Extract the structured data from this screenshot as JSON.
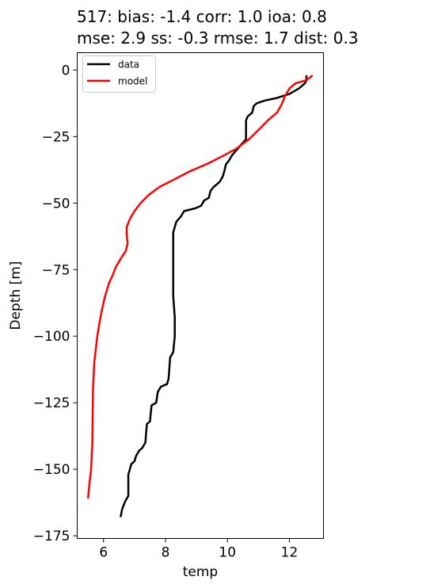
{
  "chart_data": {
    "type": "line",
    "title_lines": [
      "517: bias: -1.4  corr: 1.0  ioa: 0.8",
      "mse: 2.9  ss: -0.3  rmse: 1.7  dist: 0.3"
    ],
    "xlabel": "temp",
    "ylabel": "Depth [m]",
    "xlim": [
      5.15,
      13.1
    ],
    "ylim": [
      -176,
      6.5
    ],
    "xticks": [
      6,
      8,
      10,
      12
    ],
    "yticks": [
      0,
      -25,
      -50,
      -75,
      -100,
      -125,
      -150,
      -175
    ],
    "grid": false,
    "legend_position": "top-left",
    "series": [
      {
        "name": "data",
        "color": "#000000",
        "points": [
          [
            12.55,
            -2
          ],
          [
            12.55,
            -4
          ],
          [
            12.5,
            -5
          ],
          [
            12.3,
            -7
          ],
          [
            12.0,
            -9
          ],
          [
            11.6,
            -10.5
          ],
          [
            11.2,
            -11.5
          ],
          [
            10.95,
            -12.5
          ],
          [
            10.85,
            -13.5
          ],
          [
            10.8,
            -16
          ],
          [
            10.65,
            -17.5
          ],
          [
            10.6,
            -19
          ],
          [
            10.6,
            -26
          ],
          [
            10.45,
            -28
          ],
          [
            10.3,
            -30
          ],
          [
            10.15,
            -32
          ],
          [
            10.05,
            -34
          ],
          [
            9.95,
            -35.5
          ],
          [
            9.9,
            -38
          ],
          [
            9.85,
            -40
          ],
          [
            9.75,
            -42
          ],
          [
            9.55,
            -44
          ],
          [
            9.45,
            -45.5
          ],
          [
            9.4,
            -48
          ],
          [
            9.25,
            -49
          ],
          [
            9.15,
            -51
          ],
          [
            8.95,
            -52
          ],
          [
            8.6,
            -53
          ],
          [
            8.5,
            -55
          ],
          [
            8.35,
            -57
          ],
          [
            8.3,
            -59
          ],
          [
            8.25,
            -61
          ],
          [
            8.25,
            -66
          ],
          [
            8.25,
            -77
          ],
          [
            8.25,
            -85
          ],
          [
            8.3,
            -93
          ],
          [
            8.3,
            -100
          ],
          [
            8.25,
            -106
          ],
          [
            8.15,
            -108
          ],
          [
            8.1,
            -116
          ],
          [
            8.05,
            -118
          ],
          [
            7.85,
            -119
          ],
          [
            7.75,
            -121
          ],
          [
            7.7,
            -125
          ],
          [
            7.55,
            -126
          ],
          [
            7.5,
            -132
          ],
          [
            7.4,
            -133
          ],
          [
            7.35,
            -140
          ],
          [
            7.25,
            -142
          ],
          [
            7.15,
            -143
          ],
          [
            7.05,
            -145
          ],
          [
            7.0,
            -147
          ],
          [
            6.9,
            -148
          ],
          [
            6.85,
            -150
          ],
          [
            6.8,
            -152
          ],
          [
            6.8,
            -160
          ],
          [
            6.7,
            -162
          ],
          [
            6.6,
            -165
          ],
          [
            6.55,
            -168
          ]
        ]
      },
      {
        "name": "model",
        "color": "#ff0000",
        "points": [
          [
            12.75,
            -2
          ],
          [
            12.65,
            -3
          ],
          [
            12.5,
            -4
          ],
          [
            12.2,
            -5
          ],
          [
            12.0,
            -7
          ],
          [
            11.85,
            -10
          ],
          [
            11.75,
            -13
          ],
          [
            11.6,
            -16
          ],
          [
            11.3,
            -19
          ],
          [
            11.05,
            -22
          ],
          [
            10.7,
            -26
          ],
          [
            10.3,
            -29.5
          ],
          [
            9.9,
            -32
          ],
          [
            9.4,
            -35
          ],
          [
            8.8,
            -38
          ],
          [
            8.3,
            -41
          ],
          [
            7.8,
            -44
          ],
          [
            7.45,
            -47
          ],
          [
            7.2,
            -50
          ],
          [
            7.0,
            -53
          ],
          [
            6.85,
            -56
          ],
          [
            6.75,
            -59
          ],
          [
            6.75,
            -62
          ],
          [
            6.78,
            -65
          ],
          [
            6.72,
            -68
          ],
          [
            6.55,
            -71
          ],
          [
            6.4,
            -74
          ],
          [
            6.3,
            -77
          ],
          [
            6.18,
            -80
          ],
          [
            6.05,
            -85
          ],
          [
            5.95,
            -90
          ],
          [
            5.87,
            -95
          ],
          [
            5.8,
            -100
          ],
          [
            5.75,
            -105
          ],
          [
            5.7,
            -110
          ],
          [
            5.68,
            -115
          ],
          [
            5.66,
            -120
          ],
          [
            5.65,
            -130
          ],
          [
            5.64,
            -140
          ],
          [
            5.6,
            -150
          ],
          [
            5.55,
            -155
          ],
          [
            5.5,
            -161
          ]
        ]
      }
    ]
  }
}
